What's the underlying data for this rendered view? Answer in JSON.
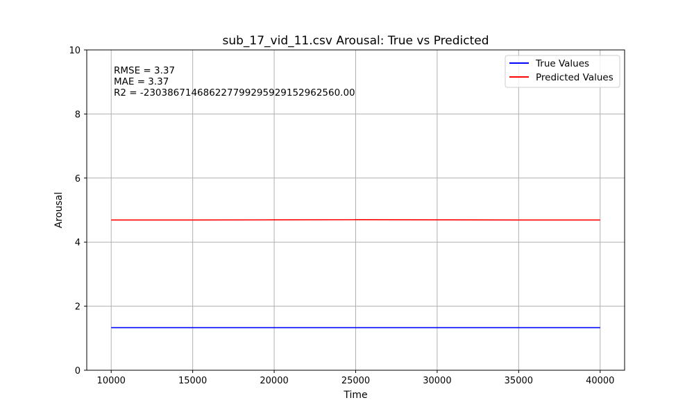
{
  "chart_data": {
    "type": "line",
    "title": "sub_17_vid_11.csv Arousal: True vs Predicted",
    "xlabel": "Time",
    "ylabel": "Arousal",
    "xlim": [
      8500,
      41500
    ],
    "ylim": [
      0,
      10
    ],
    "xticks": [
      10000,
      15000,
      20000,
      25000,
      30000,
      35000,
      40000
    ],
    "xtick_labels": [
      "10000",
      "15000",
      "20000",
      "25000",
      "30000",
      "35000",
      "40000"
    ],
    "yticks": [
      0,
      2,
      4,
      6,
      8,
      10
    ],
    "ytick_labels": [
      "0",
      "2",
      "4",
      "6",
      "8",
      "10"
    ],
    "grid": true,
    "legend_position": "top-right",
    "annotations": [
      "RMSE = 3.37",
      "MAE = 3.37",
      "R2 = -230386714686227799295929152962560.00"
    ],
    "series": [
      {
        "name": "True Values",
        "color": "#0000ff",
        "x": [
          10000,
          15000,
          20000,
          25000,
          30000,
          35000,
          40000
        ],
        "y": [
          1.33,
          1.33,
          1.33,
          1.33,
          1.33,
          1.33,
          1.33
        ]
      },
      {
        "name": "Predicted Values",
        "color": "#ff0000",
        "x": [
          10000,
          15000,
          20000,
          25000,
          30000,
          35000,
          40000
        ],
        "y": [
          4.69,
          4.69,
          4.695,
          4.7,
          4.695,
          4.69,
          4.69
        ]
      }
    ]
  }
}
